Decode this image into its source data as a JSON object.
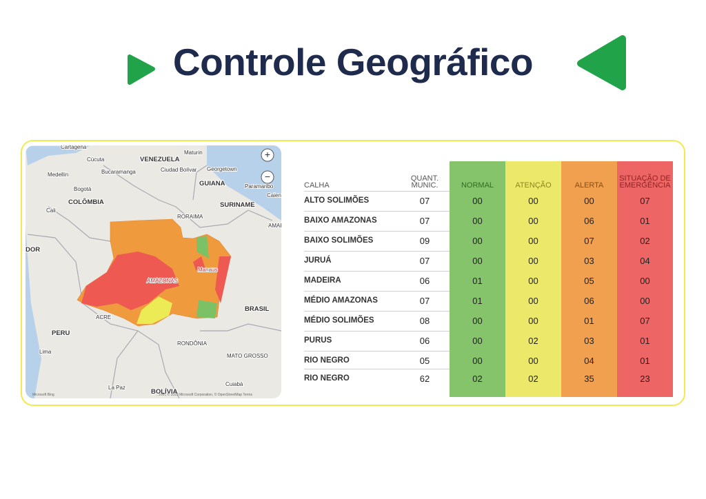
{
  "header": {
    "title": "Controle Geográfico"
  },
  "map": {
    "labels": [
      "Cartagena",
      "Cúcuta",
      "VENEZUELA",
      "Maturin",
      "Georgetown",
      "Ciudad Bolívar",
      "Bucaramanga",
      "Medellín",
      "GUIANA",
      "Paramaribo",
      "Bogotá",
      "COLÔMBIA",
      "SURINAME",
      "Caiena",
      "Cali",
      "RORAIMA",
      "AMAP",
      "DOR",
      "Manaus",
      "AMAZONAS",
      "BRASIL",
      "ACRE",
      "PERU",
      "RONDÔNIA",
      "Lima",
      "MATO GROSSO",
      "Cuiabá",
      "La Paz",
      "BOLÍVIA"
    ],
    "brand": "Microsoft Bing",
    "attribution": "...rom, © 2023 Microsoft Corporation, © OpenStreetMap  Terms"
  },
  "table": {
    "headers": [
      "CALHA",
      "QUANT. MUNIC.",
      "NORMAL",
      "ATENÇÃO",
      "ALERTA",
      "SITUAÇÃO DE EMERGÊNCIA"
    ],
    "rows": [
      [
        "ALTO SOLIMÕES",
        "07",
        "00",
        "00",
        "00",
        "07"
      ],
      [
        "BAIXO AMAZONAS",
        "07",
        "00",
        "00",
        "06",
        "01"
      ],
      [
        "BAIXO SOLIMÕES",
        "09",
        "00",
        "00",
        "07",
        "02"
      ],
      [
        "JURUÁ",
        "07",
        "00",
        "00",
        "03",
        "04"
      ],
      [
        "MADEIRA",
        "06",
        "01",
        "00",
        "05",
        "00"
      ],
      [
        "MÉDIO AMAZONAS",
        "07",
        "01",
        "00",
        "06",
        "00"
      ],
      [
        "MÉDIO SOLIMÕES",
        "08",
        "00",
        "00",
        "01",
        "07"
      ],
      [
        "PURUS",
        "06",
        "00",
        "02",
        "03",
        "01"
      ],
      [
        "RIO NEGRO",
        "05",
        "00",
        "00",
        "04",
        "01"
      ],
      [
        "RIO NEGRO",
        "62",
        "02",
        "02",
        "35",
        "23"
      ]
    ]
  }
}
